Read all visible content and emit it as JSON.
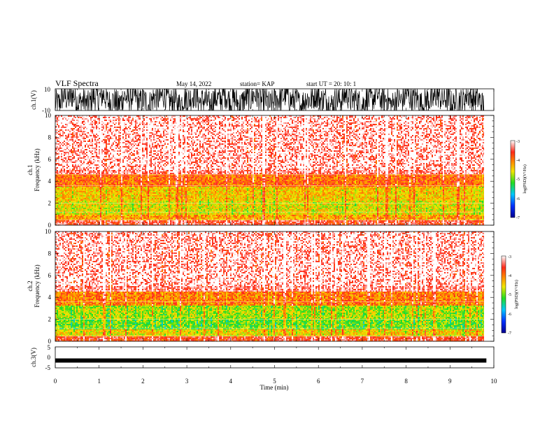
{
  "header": {
    "title": "VLF Spectra",
    "date": "May 14, 2022",
    "station": "station= KAP",
    "start": "start  UT  =   20: 10: 1"
  },
  "chart_data": [
    {
      "type": "line",
      "name": "ch1-waveform",
      "ylabel": "ch.1(V)",
      "ylim": [
        -10,
        10
      ],
      "yticks": [
        "10",
        "-10"
      ],
      "description_values": "dense oscillating waveform saturating near ±10 V"
    },
    {
      "type": "heatmap",
      "name": "ch1-spectrogram",
      "ylabel": "ch.1\nFrequency  (kHz)",
      "ylabel_line1": "ch.1",
      "ylabel_line2": "Frequency  (kHz)",
      "ylim": [
        0,
        10
      ],
      "yticks": [
        "0",
        "2",
        "4",
        "6",
        "8",
        "10"
      ],
      "colorbar": {
        "label": "log(PSD)(V²/Hz)",
        "range": [
          -7,
          -3
        ],
        "ticks": [
          "-3",
          "-4",
          "-5",
          "-6",
          "-7"
        ]
      },
      "bands": [
        {
          "from": 0.0,
          "to": 0.4,
          "level": -3.5
        },
        {
          "from": 0.4,
          "to": 1.0,
          "level": -4.2
        },
        {
          "from": 1.0,
          "to": 2.2,
          "level": -4.6
        },
        {
          "from": 2.2,
          "to": 3.5,
          "level": -4.4
        },
        {
          "from": 3.5,
          "to": 4.6,
          "level": -3.9
        },
        {
          "from": 4.6,
          "to": 10.0,
          "level": -3.3
        }
      ]
    },
    {
      "type": "heatmap",
      "name": "ch2-spectrogram",
      "ylabel": "ch.2\nFrequency  (kHz)",
      "ylabel_line1": "ch.2",
      "ylabel_line2": "Frequency  (kHz)",
      "ylim": [
        0,
        10
      ],
      "yticks": [
        "0",
        "2",
        "4",
        "6",
        "8",
        "10"
      ],
      "colorbar": {
        "label": "log(PSD)(V²/Hz)",
        "range": [
          -7,
          -3
        ],
        "ticks": [
          "-3",
          "-4",
          "-5",
          "-6",
          "-7"
        ]
      },
      "bands": [
        {
          "from": 0.0,
          "to": 0.5,
          "level": -3.6
        },
        {
          "from": 0.5,
          "to": 1.1,
          "level": -4.5
        },
        {
          "from": 1.1,
          "to": 2.0,
          "level": -5.0
        },
        {
          "from": 2.0,
          "to": 3.2,
          "level": -4.8
        },
        {
          "from": 3.2,
          "to": 4.5,
          "level": -4.0
        },
        {
          "from": 4.5,
          "to": 10.0,
          "level": -3.3
        }
      ]
    },
    {
      "type": "line",
      "name": "ch3-waveform",
      "ylabel": "ch.3(V)",
      "ylim": [
        -5,
        5
      ],
      "yticks": [
        "5",
        "0",
        "-5"
      ],
      "level": -1.5
    }
  ],
  "xaxis": {
    "label": "Time  (min)",
    "xlim": [
      0,
      10
    ],
    "ticks": [
      "0",
      "1",
      "2",
      "3",
      "4",
      "5",
      "6",
      "7",
      "8",
      "9",
      "10"
    ],
    "data_end": 9.83
  },
  "colors": {
    "red": "#ff2a1a",
    "orange": "#ff8c00",
    "yellow": "#f2e600",
    "green": "#22dd22",
    "cyan": "#00c8ff",
    "blue": "#0000cc"
  }
}
